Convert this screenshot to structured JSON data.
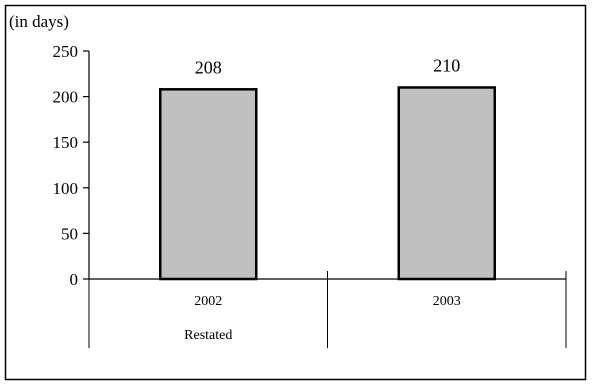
{
  "chart_data": {
    "type": "bar",
    "unit_label": "(in days)",
    "categories": [
      "2002",
      "2003"
    ],
    "category_sublabels": [
      "Restated",
      ""
    ],
    "values": [
      208,
      210
    ],
    "data_labels": [
      "208",
      "210"
    ],
    "ylim": [
      0,
      250
    ],
    "yticks": [
      0,
      50,
      100,
      150,
      200,
      250
    ],
    "grid": false,
    "legend": "none",
    "colors": {
      "bar_fill": "#c0c0c0",
      "bar_stroke": "#000000",
      "axis": "#000000"
    }
  }
}
